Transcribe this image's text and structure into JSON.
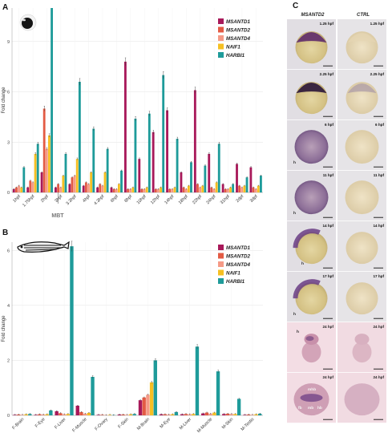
{
  "colors": {
    "MSANTD1": "#a8195a",
    "MSANTD2": "#e35b44",
    "MSANTD4": "#f59a86",
    "NAIF1": "#f5bf22",
    "HARBI1": "#1e9b9a"
  },
  "panels": {
    "a": {
      "letter": "A"
    },
    "b": {
      "letter": "B"
    },
    "c": {
      "letter": "C",
      "col_titles": [
        "MSANTD2",
        "CTRL"
      ],
      "rows": [
        {
          "stage": "1.25 hpf",
          "labels": []
        },
        {
          "stage": "2.25 hpf",
          "labels": []
        },
        {
          "stage": "6 hpf",
          "labels": [
            "h"
          ]
        },
        {
          "stage": "11 hpf",
          "labels": [
            "h"
          ]
        },
        {
          "stage": "14 hpf",
          "labels": [
            "h"
          ]
        },
        {
          "stage": "17 hpf",
          "labels": [
            "h"
          ]
        },
        {
          "stage": "24 hpf",
          "labels": [
            "h"
          ]
        },
        {
          "stage": "24 hpf",
          "labels": [
            "mhb",
            "fb",
            "mb",
            "hb"
          ]
        }
      ]
    }
  },
  "chart_data": [
    {
      "type": "bar",
      "ylabel": "Fold change",
      "ylim": [
        0,
        11
      ],
      "yticks": [
        0,
        3,
        6,
        9
      ],
      "annotation": "MBT",
      "legend_position": "top-right",
      "categories": [
        "1hpf",
        "1.75hpf",
        "2hpf",
        "3hpf",
        "3.3hpf",
        "4hpf",
        "4.3hpf",
        "6hpf",
        "8hpf",
        "10hpf",
        "12hpf",
        "14hpf",
        "18hpf",
        "22hpf",
        "24hpf",
        "31hpf",
        "2dpf",
        "3dpf"
      ],
      "series": [
        {
          "name": "MSANTD1",
          "values": [
            0.2,
            0.3,
            1.2,
            0.3,
            0.5,
            0.4,
            0.3,
            0.3,
            7.8,
            2.0,
            3.6,
            4.9,
            1.2,
            6.1,
            2.3,
            0.5,
            1.7,
            1.5
          ]
        },
        {
          "name": "MSANTD2",
          "values": [
            0.3,
            0.7,
            5.0,
            0.5,
            0.9,
            0.6,
            0.5,
            0.2,
            0.2,
            0.2,
            0.2,
            0.2,
            0.3,
            0.5,
            0.3,
            0.2,
            0.4,
            0.3
          ]
        },
        {
          "name": "MSANTD4",
          "values": [
            0.4,
            0.6,
            2.6,
            0.3,
            1.0,
            0.5,
            0.4,
            0.2,
            0.2,
            0.2,
            0.2,
            0.2,
            0.2,
            0.3,
            0.2,
            0.2,
            0.3,
            0.2
          ]
        },
        {
          "name": "NAIF1",
          "values": [
            0.3,
            2.3,
            3.4,
            1.0,
            2.0,
            1.2,
            1.2,
            0.5,
            0.3,
            0.3,
            0.3,
            0.3,
            0.4,
            0.4,
            0.6,
            0.3,
            0.4,
            0.4
          ]
        },
        {
          "name": "HARBI1",
          "values": [
            1.5,
            2.9,
            11.0,
            2.3,
            6.6,
            3.8,
            2.6,
            1.3,
            4.4,
            4.7,
            7.0,
            3.2,
            1.8,
            1.6,
            2.9,
            0.5,
            0.9,
            1.0
          ]
        }
      ]
    },
    {
      "type": "bar",
      "ylabel": "Fold change",
      "ylim": [
        0,
        6.3
      ],
      "yticks": [
        0,
        2,
        4,
        6
      ],
      "legend_position": "top-right",
      "categories": [
        "F-Brain",
        "F-Eye",
        "F-Liver",
        "F-Muscle",
        "F-Ovary",
        "F-Skin",
        "M-Brain",
        "M-Eye",
        "M-Liver",
        "M-Muscle",
        "M-Skin",
        "M-Testis"
      ],
      "series": [
        {
          "name": "MSANTD1",
          "values": [
            0.02,
            0.02,
            0.15,
            0.35,
            0.02,
            0.03,
            0.55,
            0.04,
            0.04,
            0.07,
            0.05,
            0.02
          ]
        },
        {
          "name": "MSANTD2",
          "values": [
            0.03,
            0.04,
            0.08,
            0.12,
            0.02,
            0.03,
            0.65,
            0.04,
            0.05,
            0.1,
            0.06,
            0.03
          ]
        },
        {
          "name": "MSANTD4",
          "values": [
            0.02,
            0.03,
            0.04,
            0.06,
            0.01,
            0.02,
            0.75,
            0.03,
            0.04,
            0.06,
            0.05,
            0.02
          ]
        },
        {
          "name": "NAIF1",
          "values": [
            0.04,
            0.04,
            0.05,
            0.09,
            0.02,
            0.04,
            1.2,
            0.04,
            0.05,
            0.1,
            0.05,
            0.04
          ]
        },
        {
          "name": "HARBI1",
          "values": [
            0.05,
            0.18,
            6.15,
            1.4,
            0.01,
            0.05,
            2.0,
            0.12,
            2.5,
            1.6,
            0.6,
            0.06
          ]
        }
      ]
    }
  ]
}
